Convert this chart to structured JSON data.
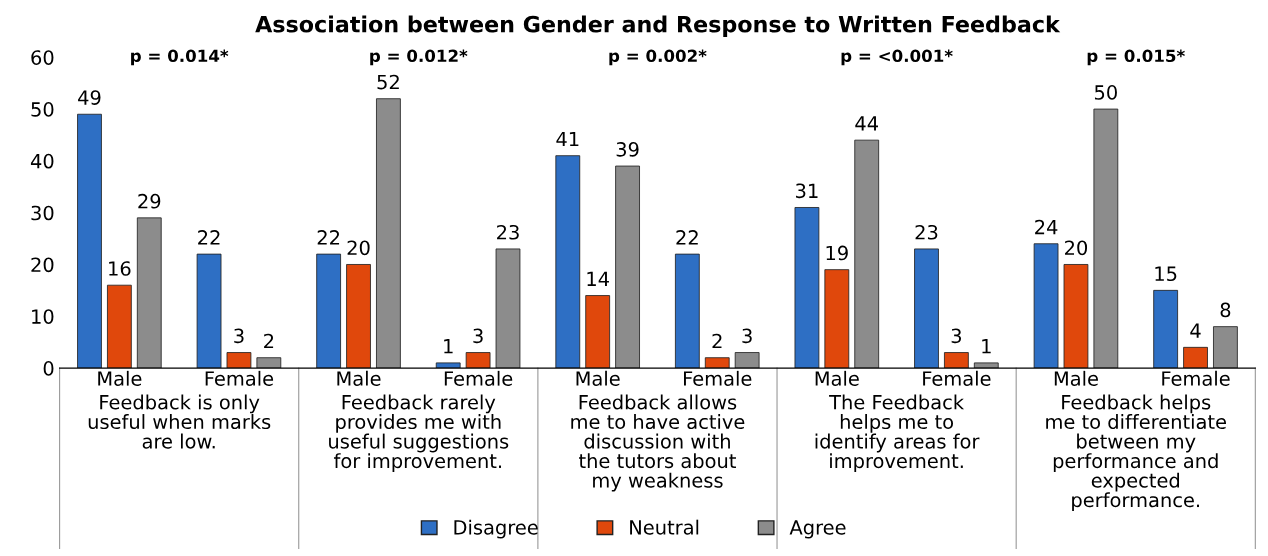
{
  "chart_data": {
    "type": "bar",
    "title": "Association between Gender and Response to Written Feedback",
    "categories": [
      "Male",
      "Female",
      "Male",
      "Female",
      "Male",
      "Female",
      "Male",
      "Female",
      "Male",
      "Female"
    ],
    "series": [
      {
        "name": "Disagree",
        "color": "#2e6fc4",
        "values": [
          49,
          22,
          22,
          1,
          41,
          22,
          31,
          23,
          24,
          15
        ]
      },
      {
        "name": "Neutral",
        "color": "#e0480c",
        "values": [
          16,
          3,
          20,
          3,
          14,
          2,
          19,
          3,
          20,
          4
        ]
      },
      {
        "name": "Agree",
        "color": "#8c8c8c",
        "values": [
          29,
          2,
          52,
          23,
          39,
          3,
          44,
          1,
          50,
          8
        ]
      }
    ],
    "ylim": [
      0,
      60
    ],
    "yticks": [
      0,
      10,
      20,
      30,
      40,
      50,
      60
    ],
    "data_labels": true,
    "grid": false,
    "legend": "bottom",
    "annotations": [
      "p = 0.014*",
      "p = 0.012*",
      "p = 0.002*",
      "p = <0.001*",
      "p = 0.015*",
      "Feedback is only\nuseful when marks\nare low.",
      "Feedback rarely\nprovides me with\nuseful suggestions\nfor improvement.",
      "Feedback allows\nme to have active\ndiscussion with\nthe tutors about\nmy weakness",
      "The Feedback\nhelps me to\nidentify areas for\nimprovement.",
      "Feedback helps\nme to differentiate\nbetween my\nperformance and\nexpected\nperformance."
    ]
  }
}
